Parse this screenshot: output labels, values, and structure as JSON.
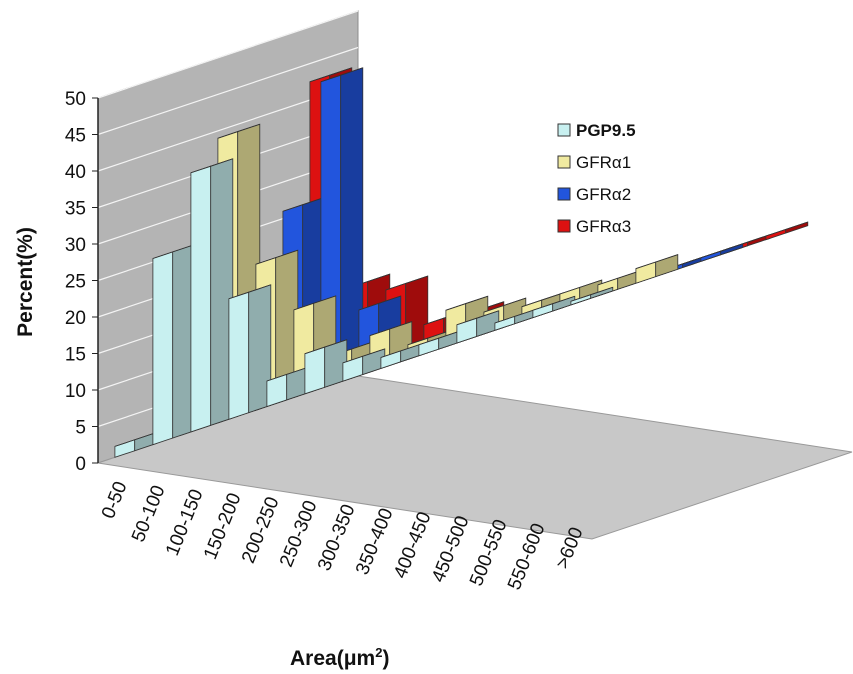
{
  "chart_data": {
    "type": "bar",
    "subtype": "3d-clustered-column",
    "title": "",
    "xlabel": "Area(μm²)",
    "xlabel_base": "Area(μm",
    "xlabel_sup": "2",
    "xlabel_end": ")",
    "ylabel": "Percent(%)",
    "ylim": [
      0,
      50
    ],
    "yticks": [
      "0",
      "5",
      "10",
      "15",
      "20",
      "25",
      "30",
      "35",
      "40",
      "45",
      "50"
    ],
    "grid": true,
    "legend_position": "top-right",
    "categories": [
      "0-50",
      "50-100",
      "100-150",
      "150-200",
      "200-250",
      "250-300",
      "300-350",
      "350-400",
      "400-450",
      "450-500",
      "500-550",
      "550-600",
      ">600"
    ],
    "series": [
      {
        "name": "PGP9.5",
        "color": "#c8f0f0",
        "values": [
          1.5,
          25.5,
          35.5,
          16.5,
          3.5,
          5.5,
          2.5,
          1.5,
          1.5,
          2.5,
          1.0,
          1.0,
          0.5
        ]
      },
      {
        "name": "GFRα1",
        "color": "#f0eaa0",
        "values": [
          3.5,
          39.0,
          20.0,
          12.0,
          4.0,
          5.0,
          2.0,
          5.0,
          3.0,
          2.0,
          2.0,
          1.5,
          2.0
        ]
      },
      {
        "name": "GFRα2",
        "color": "#2255dd",
        "values": [
          1.0,
          26.0,
          42.0,
          9.0,
          1.5,
          0.5,
          0.5,
          0.5,
          0.5,
          0.5,
          0.5,
          0.5,
          0.5
        ]
      },
      {
        "name": "GFRα3",
        "color": "#dd1111",
        "values": [
          42.5,
          12.5,
          10.5,
          4.0,
          3.5,
          1.5,
          0.5,
          0.5,
          0.5,
          0.5,
          0.5,
          0.5,
          0.5
        ]
      }
    ]
  }
}
